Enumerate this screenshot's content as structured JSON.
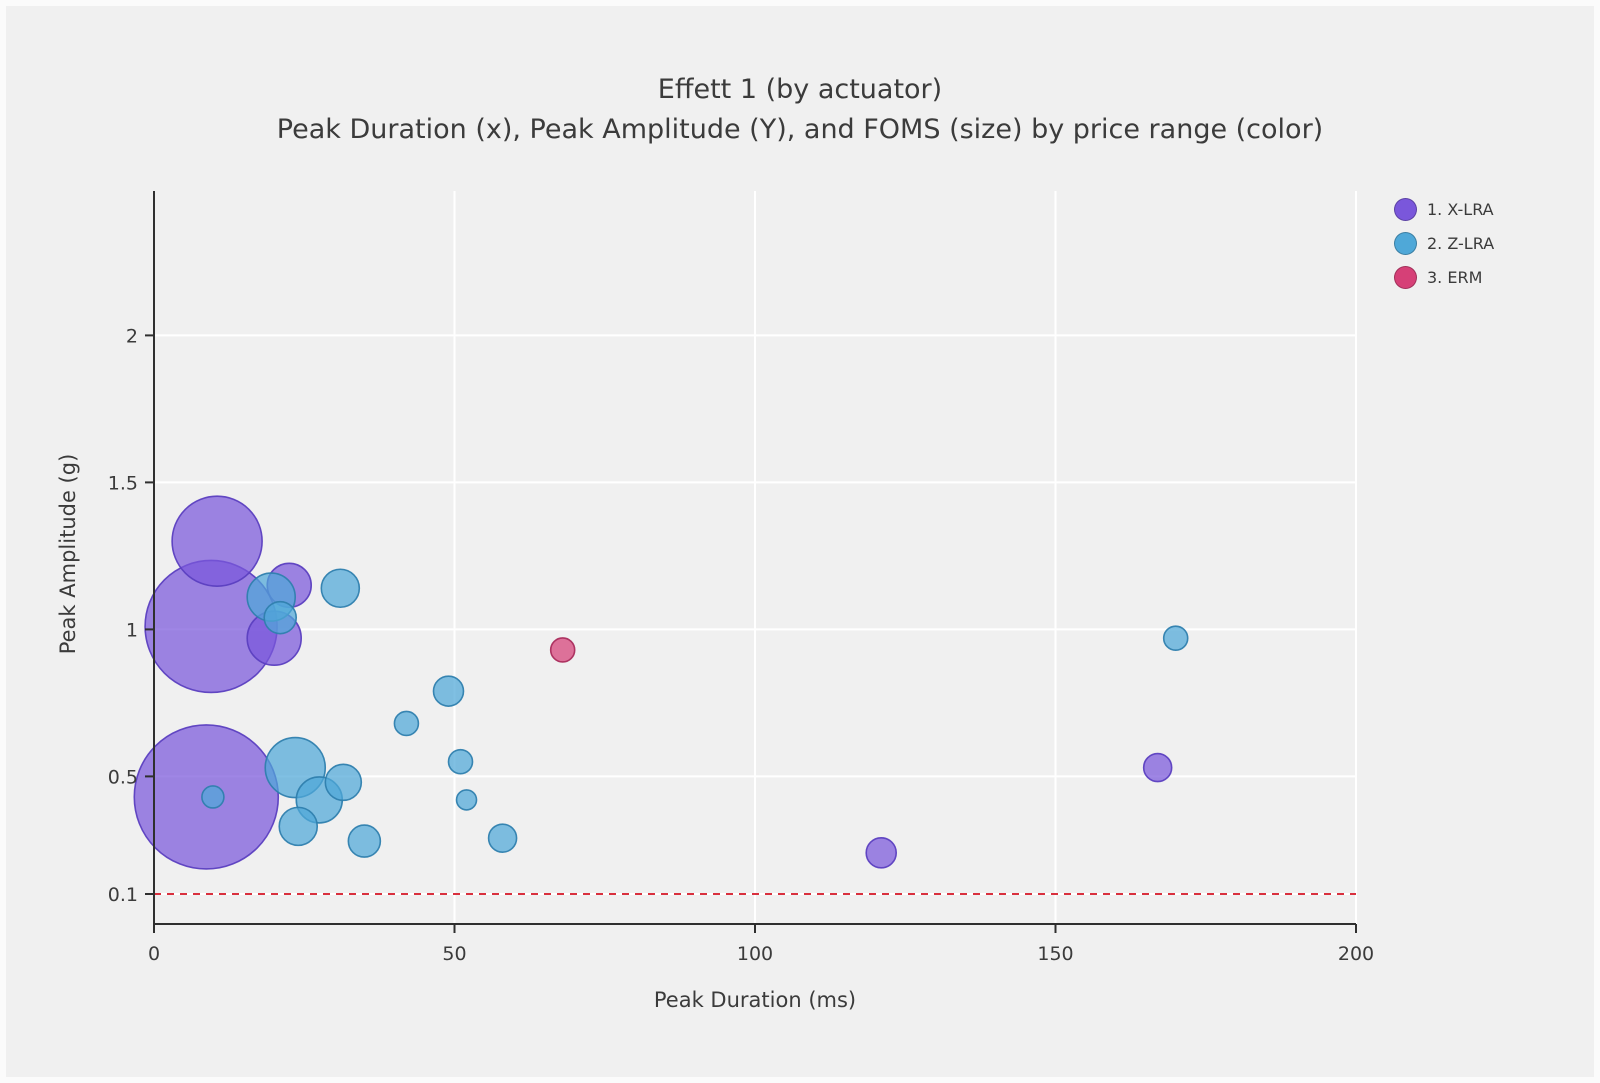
{
  "title": "Effett 1 (by actuator)",
  "subtitle": "Peak Duration (x), Peak Amplitude (Y), and FOMS (size) by price range (color)",
  "chart_data": {
    "type": "scatter",
    "variant": "bubble",
    "title": "Effett 1 (by actuator)",
    "subtitle": "Peak Duration (x), Peak Amplitude (Y), and FOMS (size) by price range (color)",
    "xlabel": "Peak Duration (ms)",
    "ylabel": "Peak Amplitude (g)",
    "xlim": [
      0,
      200
    ],
    "ylim": [
      0.1,
      2.45
    ],
    "xticks": [
      0,
      50,
      100,
      150,
      200
    ],
    "yticks": [
      0.1,
      0.5,
      1,
      1.5,
      2
    ],
    "grid": true,
    "grid_color": "#ffffff",
    "background_color": "#f0f0f0",
    "axis_color": "#2f2f2f",
    "threshold_line": {
      "y": 0.1,
      "color": "#d9303e",
      "style": "dashed"
    },
    "legend_position": "top-right",
    "size_meaning": "FOMS",
    "color_meaning": "price range",
    "series": [
      {
        "name": "1. X-LRA",
        "color": "#7a57db",
        "stroke": "#5b3fc0",
        "points": [
          {
            "x": 8.7,
            "y": 0.43,
            "r": 72
          },
          {
            "x": 9.5,
            "y": 1.01,
            "r": 66
          },
          {
            "x": 10.5,
            "y": 1.3,
            "r": 45
          },
          {
            "x": 20,
            "y": 0.97,
            "r": 27
          },
          {
            "x": 22.5,
            "y": 1.15,
            "r": 22
          },
          {
            "x": 121,
            "y": 0.24,
            "r": 15
          },
          {
            "x": 167,
            "y": 0.53,
            "r": 14
          }
        ]
      },
      {
        "name": "2. Z-LRA",
        "color": "#4fa8d8",
        "stroke": "#2f7fae",
        "points": [
          {
            "x": 23.5,
            "y": 0.53,
            "r": 30
          },
          {
            "x": 19.5,
            "y": 1.11,
            "r": 24
          },
          {
            "x": 27.5,
            "y": 0.42,
            "r": 23
          },
          {
            "x": 31,
            "y": 1.14,
            "r": 19
          },
          {
            "x": 24,
            "y": 0.33,
            "r": 19
          },
          {
            "x": 31.5,
            "y": 0.48,
            "r": 18
          },
          {
            "x": 21,
            "y": 1.04,
            "r": 16
          },
          {
            "x": 35,
            "y": 0.28,
            "r": 16
          },
          {
            "x": 49,
            "y": 0.79,
            "r": 15
          },
          {
            "x": 58,
            "y": 0.29,
            "r": 14
          },
          {
            "x": 42,
            "y": 0.68,
            "r": 12
          },
          {
            "x": 51,
            "y": 0.55,
            "r": 12
          },
          {
            "x": 170,
            "y": 0.97,
            "r": 12
          },
          {
            "x": 9.8,
            "y": 0.43,
            "r": 11
          },
          {
            "x": 52,
            "y": 0.42,
            "r": 10
          }
        ]
      },
      {
        "name": "3. ERM",
        "color": "#d64077",
        "stroke": "#aa2c5c",
        "points": [
          {
            "x": 68,
            "y": 0.93,
            "r": 12
          }
        ]
      }
    ]
  }
}
